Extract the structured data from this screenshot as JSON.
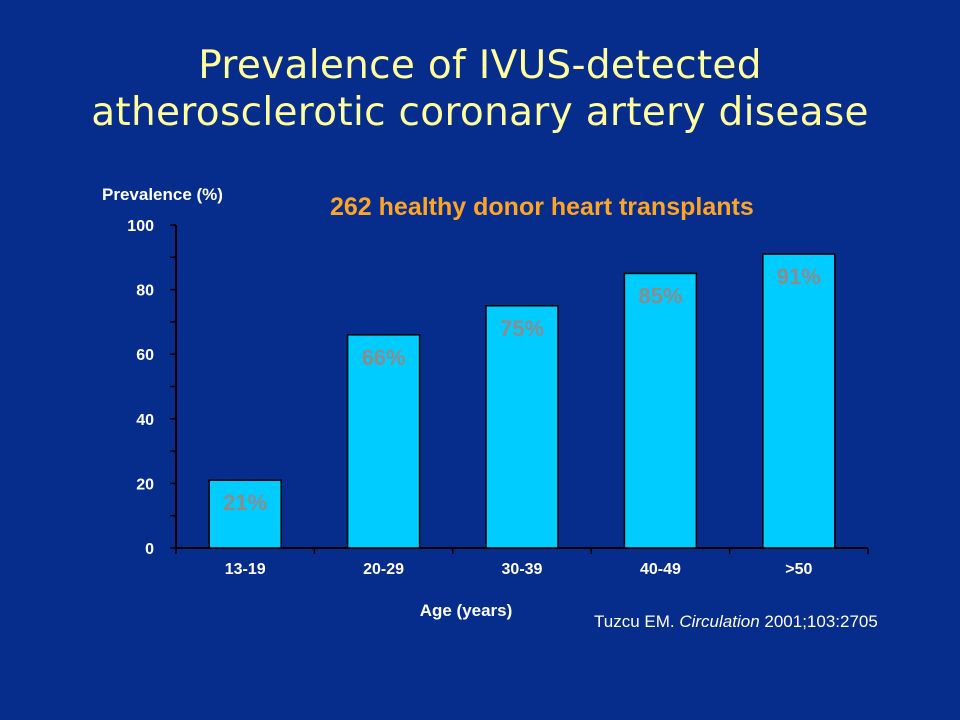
{
  "slide": {
    "title_line1": "Prevalence of IVUS-detected",
    "title_line2": "atherosclerotic coronary artery disease",
    "subtitle": "262 healthy donor heart transplants",
    "citation": {
      "author": "Tuzcu EM. ",
      "journal": "Circulation",
      "details": " 2001;103:2705"
    }
  },
  "colors": {
    "background": "#062c8c",
    "title": "#ffff9f",
    "subtitle": "#ffa526",
    "bar_fill": "#00ccff",
    "bar_label": "#8c8c8c",
    "axis_text": "#ffffff"
  },
  "chart_data": {
    "type": "bar",
    "title": "262 healthy donor heart transplants",
    "xlabel": "Age (years)",
    "ylabel": "Prevalence (%)",
    "categories": [
      "13-19",
      "20-29",
      "30-39",
      "40-49",
      ">50"
    ],
    "values": [
      21,
      66,
      75,
      85,
      91
    ],
    "value_labels": [
      "21%",
      "66%",
      "75%",
      "85%",
      "91%"
    ],
    "ylim": [
      0,
      100
    ],
    "yticks": [
      0,
      20,
      40,
      60,
      80,
      100
    ],
    "grid": false,
    "legend": "none"
  }
}
